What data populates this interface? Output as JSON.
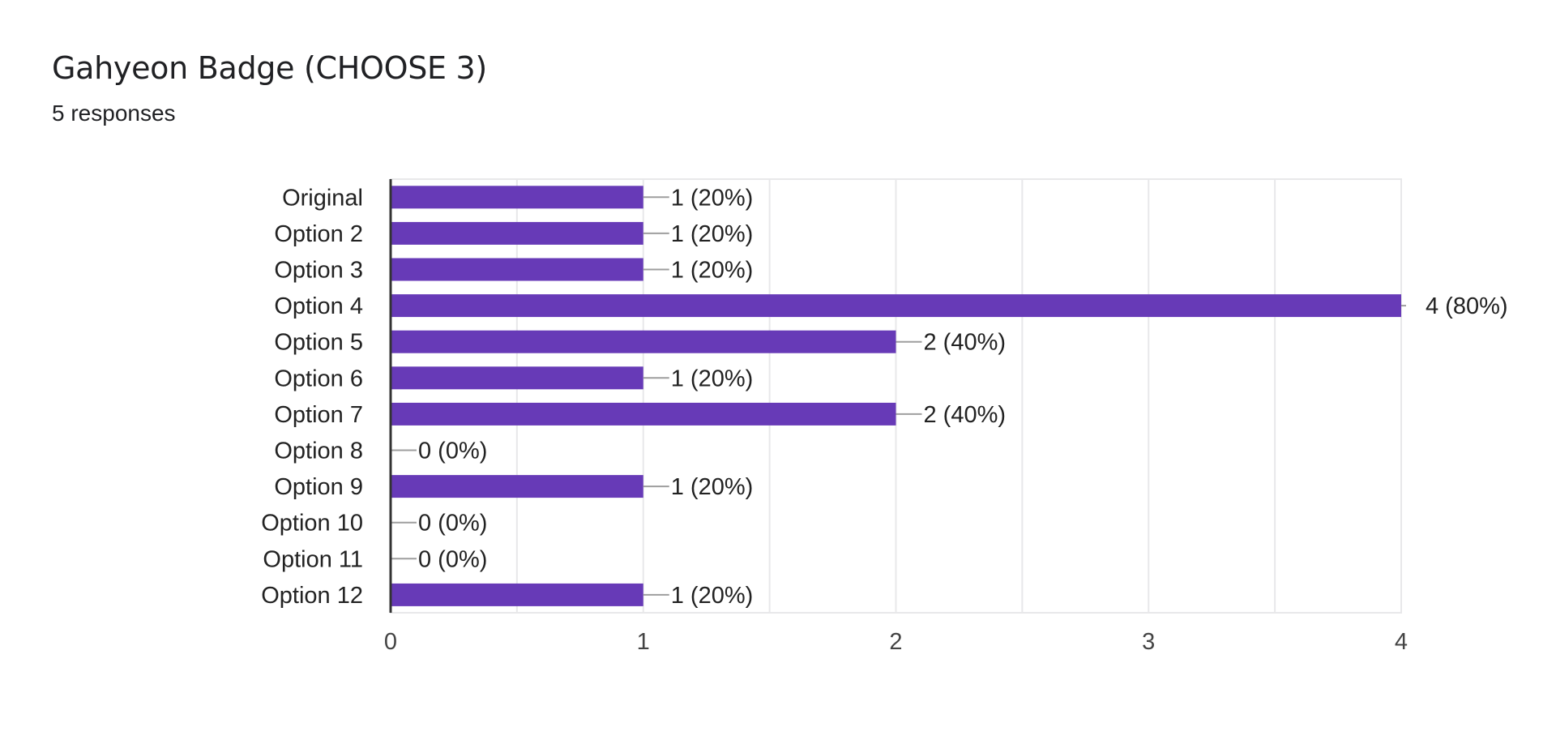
{
  "header": {
    "title": "Gahyeon Badge (CHOOSE 3)",
    "subtitle": "5 responses"
  },
  "colors": {
    "bar": "#673ab7",
    "gridline": "#e8e8ea",
    "axis": "#333333",
    "leader": "#9e9e9e",
    "label": "#222222",
    "tick": "#444444"
  },
  "chart_data": {
    "type": "bar",
    "orientation": "horizontal",
    "categories": [
      "Original",
      "Option 2",
      "Option 3",
      "Option 4",
      "Option 5",
      "Option 6",
      "Option 7",
      "Option 8",
      "Option 9",
      "Option 10",
      "Option 11",
      "Option 12"
    ],
    "values": [
      1,
      1,
      1,
      4,
      2,
      1,
      2,
      0,
      1,
      0,
      0,
      1
    ],
    "data_labels": [
      "1 (20%)",
      "1 (20%)",
      "1 (20%)",
      "4 (80%)",
      "2 (40%)",
      "1 (20%)",
      "2 (40%)",
      "0 (0%)",
      "1 (20%)",
      "0 (0%)",
      "0 (0%)",
      "1 (20%)"
    ],
    "xlim": [
      0,
      4
    ],
    "x_ticks": [
      0,
      1,
      2,
      3,
      4
    ],
    "minor_gridlines": [
      0.5,
      1.5,
      2.5,
      3.5
    ],
    "grid": true,
    "legend": "none"
  }
}
